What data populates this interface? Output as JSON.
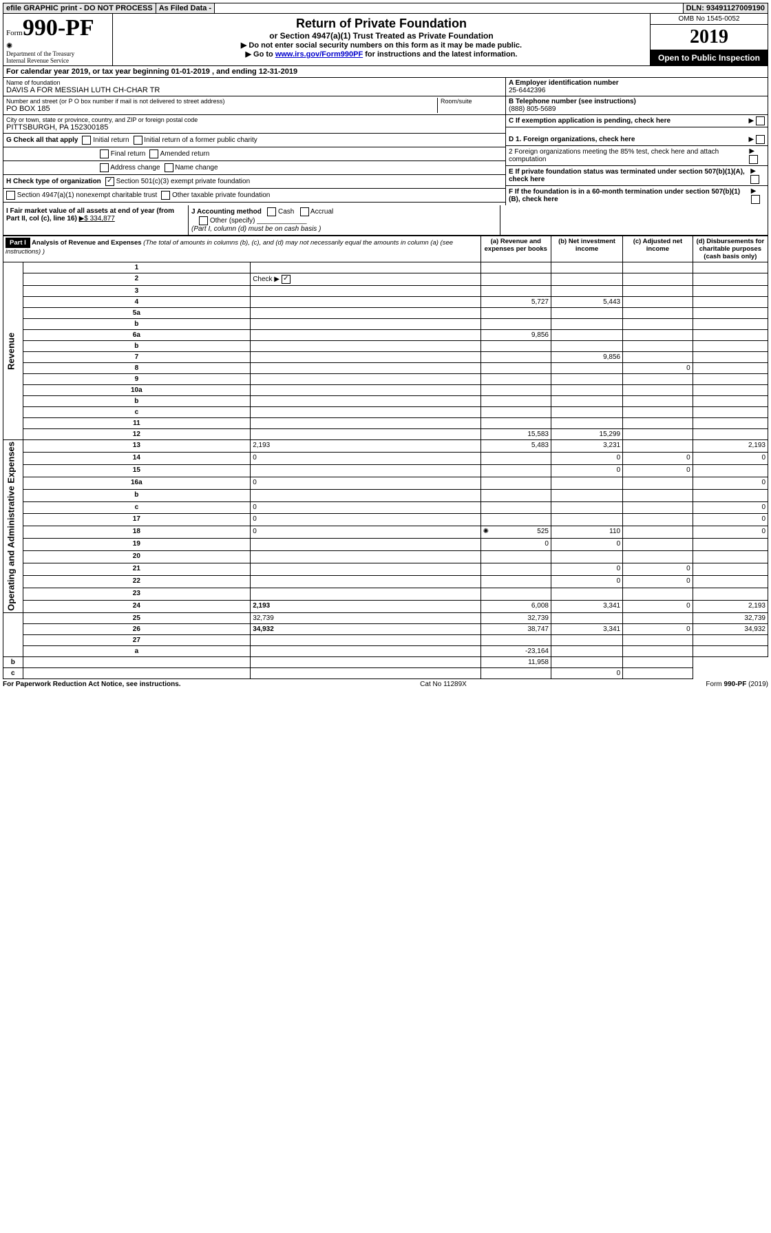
{
  "top_bar": {
    "efile": "efile GRAPHIC print - DO NOT PROCESS",
    "asfiled": "As Filed Data -",
    "dln": "DLN: 93491127009190"
  },
  "header": {
    "form_label": "Form",
    "form_number": "990-PF",
    "dept1": "Department of the Treasury",
    "dept2": "Internal Revenue Service",
    "title": "Return of Private Foundation",
    "subtitle": "or Section 4947(a)(1) Trust Treated as Private Foundation",
    "note1": "▶ Do not enter social security numbers on this form as it may be made public.",
    "note2_pre": "▶ Go to ",
    "note2_link": "www.irs.gov/Form990PF",
    "note2_post": " for instructions and the latest information.",
    "omb": "OMB No 1545-0052",
    "year": "2019",
    "inspect": "Open to Public Inspection"
  },
  "cal": {
    "text_pre": "For calendar year 2019, or tax year beginning ",
    "begin": "01-01-2019",
    "mid": " , and ending ",
    "end": "12-31-2019"
  },
  "info": {
    "name_label": "Name of foundation",
    "name": "DAVIS A FOR MESSIAH LUTH CH-CHAR TR",
    "addr_label": "Number and street (or P O  box number if mail is not delivered to street address)",
    "room_label": "Room/suite",
    "addr": "PO BOX 185",
    "city_label": "City or town, state or province, country, and ZIP or foreign postal code",
    "city": "PITTSBURGH, PA  152300185",
    "a_label": "A Employer identification number",
    "a_val": "25-6442396",
    "b_label": "B Telephone number (see instructions)",
    "b_val": "(888) 805-5689",
    "c_label": "C If exemption application is pending, check here"
  },
  "g": {
    "label": "G Check all that apply",
    "initial": "Initial return",
    "initial_former": "Initial return of a former public charity",
    "final": "Final return",
    "amended": "Amended return",
    "address": "Address change",
    "name": "Name change"
  },
  "h": {
    "label": "H Check type of organization",
    "opt1": "Section 501(c)(3) exempt private foundation",
    "opt2": "Section 4947(a)(1) nonexempt charitable trust",
    "opt3": "Other taxable private foundation"
  },
  "d": {
    "d1": "D 1. Foreign organizations, check here",
    "d2": "2 Foreign organizations meeting the 85% test, check here and attach computation",
    "e": "E  If private foundation status was terminated under section 507(b)(1)(A), check here",
    "f": "F  If the foundation is in a 60-month termination under section 507(b)(1)(B), check here"
  },
  "ij": {
    "i_label": "I Fair market value of all assets at end of year (from Part II, col  (c), line 16)",
    "i_val": "▶$  334,877",
    "j_label": "J Accounting method",
    "cash": "Cash",
    "accrual": "Accrual",
    "other": "Other (specify)",
    "note": "(Part I, column (d) must be on cash basis )"
  },
  "part1": {
    "header": "Part I",
    "title": "Analysis of Revenue and Expenses",
    "title_note": " (The total of amounts in columns (b), (c), and (d) may not necessarily equal the amounts in column (a) (see instructions) )",
    "col_a": "(a)   Revenue and expenses per books",
    "col_b": "(b)  Net investment income",
    "col_c": "(c)  Adjusted net income",
    "col_d": "(d)  Disbursements for charitable purposes (cash basis only)",
    "side_rev": "Revenue",
    "side_exp": "Operating and Administrative Expenses",
    "rows": [
      {
        "n": "1",
        "d": "",
        "a": "",
        "b": "",
        "c": ""
      },
      {
        "n": "2",
        "d": "",
        "a": "",
        "b": "",
        "c": "",
        "check": true
      },
      {
        "n": "3",
        "d": "",
        "a": "",
        "b": "",
        "c": ""
      },
      {
        "n": "4",
        "d": "",
        "a": "5,727",
        "b": "5,443",
        "c": ""
      },
      {
        "n": "5a",
        "d": "",
        "a": "",
        "b": "",
        "c": ""
      },
      {
        "n": "b",
        "d": "",
        "a": "",
        "b": "",
        "c": ""
      },
      {
        "n": "6a",
        "d": "",
        "a": "9,856",
        "b": "",
        "c": ""
      },
      {
        "n": "b",
        "d": "",
        "a": "",
        "b": "",
        "c": ""
      },
      {
        "n": "7",
        "d": "",
        "a": "",
        "b": "9,856",
        "c": ""
      },
      {
        "n": "8",
        "d": "",
        "a": "",
        "b": "",
        "c": "0"
      },
      {
        "n": "9",
        "d": "",
        "a": "",
        "b": "",
        "c": ""
      },
      {
        "n": "10a",
        "d": "",
        "a": "",
        "b": "",
        "c": ""
      },
      {
        "n": "b",
        "d": "",
        "a": "",
        "b": "",
        "c": ""
      },
      {
        "n": "c",
        "d": "",
        "a": "",
        "b": "",
        "c": ""
      },
      {
        "n": "11",
        "d": "",
        "a": "",
        "b": "",
        "c": ""
      },
      {
        "n": "12",
        "d": "",
        "a": "15,583",
        "b": "15,299",
        "c": "",
        "bold": true
      },
      {
        "n": "13",
        "d": "2,193",
        "a": "5,483",
        "b": "3,231",
        "c": ""
      },
      {
        "n": "14",
        "d": "0",
        "a": "",
        "b": "0",
        "c": "0"
      },
      {
        "n": "15",
        "d": "",
        "a": "",
        "b": "0",
        "c": "0"
      },
      {
        "n": "16a",
        "d": "0",
        "a": "",
        "b": "",
        "c": ""
      },
      {
        "n": "b",
        "d": "",
        "a": "",
        "b": "",
        "c": ""
      },
      {
        "n": "c",
        "d": "0",
        "a": "",
        "b": "",
        "c": ""
      },
      {
        "n": "17",
        "d": "0",
        "a": "",
        "b": "",
        "c": ""
      },
      {
        "n": "18",
        "d": "0",
        "a": "525",
        "b": "110",
        "c": "",
        "icon": true
      },
      {
        "n": "19",
        "d": "",
        "a": "0",
        "b": "0",
        "c": ""
      },
      {
        "n": "20",
        "d": "",
        "a": "",
        "b": "",
        "c": ""
      },
      {
        "n": "21",
        "d": "",
        "a": "",
        "b": "0",
        "c": "0"
      },
      {
        "n": "22",
        "d": "",
        "a": "",
        "b": "0",
        "c": "0"
      },
      {
        "n": "23",
        "d": "",
        "a": "",
        "b": "",
        "c": ""
      },
      {
        "n": "24",
        "d": "2,193",
        "a": "6,008",
        "b": "3,341",
        "c": "0",
        "bold": true
      },
      {
        "n": "25",
        "d": "32,739",
        "a": "32,739",
        "b": "",
        "c": ""
      },
      {
        "n": "26",
        "d": "34,932",
        "a": "38,747",
        "b": "3,341",
        "c": "0",
        "bold": true
      },
      {
        "n": "27",
        "d": "",
        "a": "",
        "b": "",
        "c": ""
      },
      {
        "n": "a",
        "d": "",
        "a": "-23,164",
        "b": "",
        "c": "",
        "bold": true
      },
      {
        "n": "b",
        "d": "",
        "a": "",
        "b": "11,958",
        "c": "",
        "bold": true
      },
      {
        "n": "c",
        "d": "",
        "a": "",
        "b": "",
        "c": "0",
        "bold": true
      }
    ]
  },
  "footer": {
    "left": "For Paperwork Reduction Act Notice, see instructions.",
    "mid": "Cat  No  11289X",
    "right": "Form 990-PF (2019)"
  }
}
